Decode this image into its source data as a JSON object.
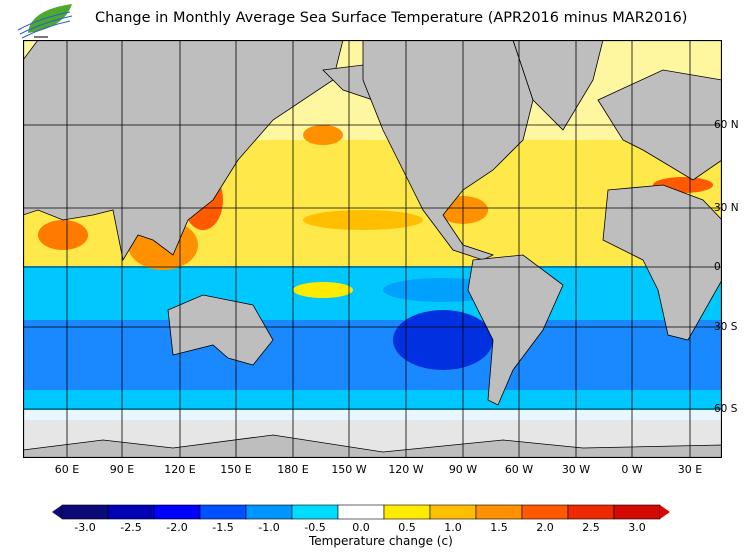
{
  "title": "Change in Monthly Average Sea Surface Temperature (APR2016 minus MAR2016)",
  "map": {
    "projection": "mercator",
    "longitude_labels": [
      "60 E",
      "90 E",
      "120 E",
      "150 E",
      "180 E",
      "150 W",
      "120 W",
      "90 W",
      "60 W",
      "30 W",
      "0 W",
      "30 E"
    ],
    "latitude_labels": [
      "60 N",
      "30 N",
      "0",
      "30 S",
      "60 S"
    ],
    "land_color": "#bebebe",
    "ice_color": "#e6e6e6"
  },
  "colorbar": {
    "label": "Temperature change  (c)",
    "ticks": [
      "-3.0",
      "-2.5",
      "-2.0",
      "-1.5",
      "-1.0",
      "-0.5",
      "0.0",
      "0.5",
      "1.0",
      "1.5",
      "2.0",
      "2.5",
      "3.0"
    ],
    "colors": [
      "#0a0a78",
      "#0000b4",
      "#0000ff",
      "#0050ff",
      "#0096ff",
      "#00dcff",
      "#ffffff",
      "#ffeb00",
      "#ffbe00",
      "#ff9100",
      "#ff5a00",
      "#f02800",
      "#d20a00"
    ]
  }
}
